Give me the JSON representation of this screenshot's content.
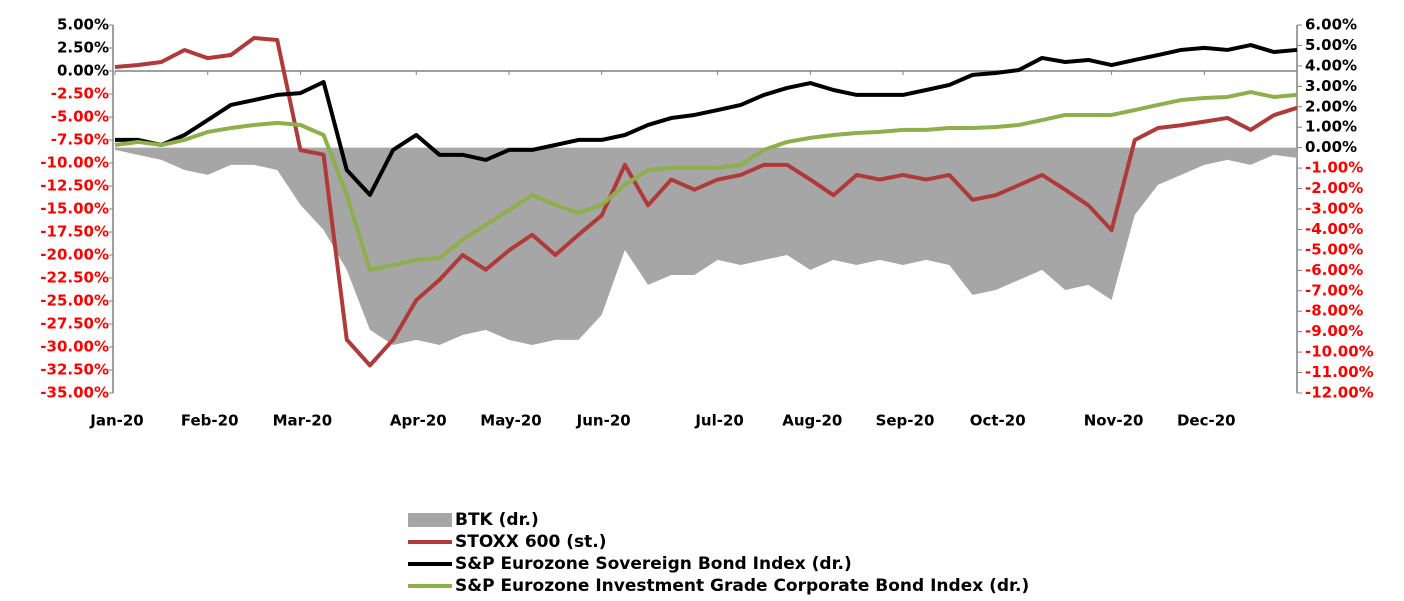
{
  "chart_data": {
    "type": "line",
    "categories": [
      "Jan-20",
      null,
      null,
      null,
      "Feb-20",
      null,
      null,
      null,
      "Mar-20",
      null,
      null,
      null,
      null,
      "Apr-20",
      null,
      null,
      null,
      "May-20",
      null,
      null,
      null,
      "Jun-20",
      null,
      null,
      null,
      null,
      "Jul-20",
      null,
      null,
      null,
      "Aug-20",
      null,
      null,
      null,
      "Sep-20",
      null,
      null,
      null,
      "Oct-20",
      null,
      null,
      null,
      null,
      "Nov-20",
      null,
      null,
      null,
      "Dec-20",
      null,
      null,
      null,
      null
    ],
    "series": [
      {
        "name": "BTK (dr.)",
        "color": "#a6a6a6",
        "style": "area",
        "axis": "y2",
        "values": [
          -0.11,
          -0.35,
          -0.6,
          -1.09,
          -1.33,
          -0.84,
          -0.84,
          -1.09,
          -2.8,
          -4.02,
          -5.98,
          -8.91,
          -9.65,
          -9.4,
          -9.65,
          -9.16,
          -8.91,
          -9.4,
          -9.65,
          -9.4,
          -9.4,
          -8.18,
          -5.0,
          -6.71,
          -6.23,
          -6.23,
          -5.49,
          -5.74,
          -5.49,
          -5.25,
          -5.98,
          -5.49,
          -5.74,
          -5.49,
          -5.74,
          -5.49,
          -5.74,
          -7.2,
          -6.96,
          -6.47,
          -5.98,
          -6.96,
          -6.71,
          -7.45,
          -3.29,
          -1.82,
          -1.33,
          -0.84,
          -0.6,
          -0.84,
          -0.35,
          -0.5
        ]
      },
      {
        "name": "STOXX 600 (st.)",
        "color": "#b03a3a",
        "style": "line",
        "axis": "y",
        "values": [
          0.43,
          0.65,
          0.98,
          2.28,
          1.4,
          1.74,
          3.59,
          3.37,
          -8.6,
          -9.1,
          -29.2,
          -32.0,
          -29.2,
          -24.9,
          -22.7,
          -20.0,
          -21.6,
          -19.5,
          -17.8,
          -20.0,
          -17.8,
          -15.7,
          -10.2,
          -14.6,
          -11.8,
          -12.9,
          -11.8,
          -11.3,
          -10.2,
          -10.2,
          -11.8,
          -13.5,
          -11.3,
          -11.8,
          -11.3,
          -11.8,
          -11.3,
          -14.0,
          -13.5,
          -12.4,
          -11.3,
          -12.9,
          -14.6,
          -17.3,
          -7.5,
          -6.2,
          -5.9,
          -5.5,
          -5.1,
          -6.4,
          -4.8,
          -4.0
        ]
      },
      {
        "name": "S&P Eurozone Sovereign Bond Index (dr.)",
        "color": "#000000",
        "style": "line",
        "axis": "y2",
        "values": [
          0.38,
          0.38,
          0.13,
          0.62,
          1.35,
          2.09,
          2.33,
          2.58,
          2.67,
          3.21,
          -1.09,
          -2.31,
          -0.11,
          0.62,
          -0.35,
          -0.35,
          -0.6,
          -0.11,
          -0.11,
          0.13,
          0.38,
          0.38,
          0.62,
          1.11,
          1.45,
          1.6,
          1.84,
          2.09,
          2.58,
          2.92,
          3.16,
          2.82,
          2.58,
          2.58,
          2.58,
          2.82,
          3.07,
          3.56,
          3.65,
          3.8,
          4.39,
          4.19,
          4.29,
          4.04,
          4.29,
          4.53,
          4.78,
          4.88,
          4.78,
          5.02,
          4.68,
          4.78
        ]
      },
      {
        "name": "S&P Eurozone Investment Grade Corporate Bond Index (dr.)",
        "color": "#8db04a",
        "style": "line",
        "axis": "y2",
        "values": [
          0.13,
          0.28,
          0.13,
          0.38,
          0.77,
          0.96,
          1.11,
          1.21,
          1.11,
          0.62,
          -2.31,
          -5.98,
          -5.74,
          -5.49,
          -5.39,
          -4.51,
          -3.78,
          -3.05,
          -2.31,
          -2.8,
          -3.19,
          -2.8,
          -1.82,
          -1.09,
          -0.99,
          -0.99,
          -0.99,
          -0.84,
          -0.11,
          0.28,
          0.48,
          0.62,
          0.72,
          0.77,
          0.87,
          0.87,
          0.96,
          0.96,
          1.01,
          1.11,
          1.35,
          1.6,
          1.6,
          1.6,
          1.84,
          2.09,
          2.33,
          2.43,
          2.48,
          2.72,
          2.48,
          2.58
        ]
      }
    ],
    "ylim": [
      -35,
      5
    ],
    "yticks": [
      {
        "value": 5,
        "label": "5.00%"
      },
      {
        "value": 2.5,
        "label": "2.50%"
      },
      {
        "value": 0,
        "label": "0.00%"
      },
      {
        "value": -2.5,
        "label": "-2.50%"
      },
      {
        "value": -5,
        "label": "-5.00%"
      },
      {
        "value": -7.5,
        "label": "-7.50%"
      },
      {
        "value": -10,
        "label": "-10.00%"
      },
      {
        "value": -12.5,
        "label": "-12.50%"
      },
      {
        "value": -15,
        "label": "-15.00%"
      },
      {
        "value": -17.5,
        "label": "-17.50%"
      },
      {
        "value": -20,
        "label": "-20.00%"
      },
      {
        "value": -22.5,
        "label": "-22.50%"
      },
      {
        "value": -25,
        "label": "-25.00%"
      },
      {
        "value": -27.5,
        "label": "-27.50%"
      },
      {
        "value": -30,
        "label": "-30.00%"
      },
      {
        "value": -32.5,
        "label": "-32.50%"
      },
      {
        "value": -35,
        "label": "-35.00%"
      }
    ],
    "y2lim": [
      -12,
      6
    ],
    "y2ticks": [
      {
        "value": 6,
        "label": "6.00%"
      },
      {
        "value": 5,
        "label": "5.00%"
      },
      {
        "value": 4,
        "label": "4.00%"
      },
      {
        "value": 3,
        "label": "3.00%"
      },
      {
        "value": 2,
        "label": "2.00%"
      },
      {
        "value": 1,
        "label": "1.00%"
      },
      {
        "value": 0,
        "label": "0.00%"
      },
      {
        "value": -1,
        "label": "-1.00%"
      },
      {
        "value": -2,
        "label": "-2.00%"
      },
      {
        "value": -3,
        "label": "-3.00%"
      },
      {
        "value": -4,
        "label": "-4.00%"
      },
      {
        "value": -5,
        "label": "-5.00%"
      },
      {
        "value": -6,
        "label": "-6.00%"
      },
      {
        "value": -7,
        "label": "-7.00%"
      },
      {
        "value": -8,
        "label": "-8.00%"
      },
      {
        "value": -9,
        "label": "-9.00%"
      },
      {
        "value": -10,
        "label": "-10.00%"
      },
      {
        "value": -11,
        "label": "-11.00%"
      },
      {
        "value": -12,
        "label": "-12.00%"
      }
    ],
    "negative_label_color": "#ff0000",
    "label_color": "#000000"
  }
}
